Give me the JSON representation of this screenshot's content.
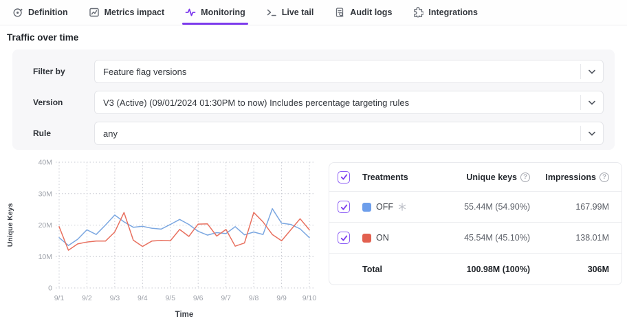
{
  "tabs": {
    "items": [
      {
        "label": "Definition",
        "icon": "flag-definition-icon",
        "active": false
      },
      {
        "label": "Metrics impact",
        "icon": "metrics-chart-icon",
        "active": false
      },
      {
        "label": "Monitoring",
        "icon": "pulse-icon",
        "active": true
      },
      {
        "label": "Live tail",
        "icon": "terminal-icon",
        "active": false
      },
      {
        "label": "Audit logs",
        "icon": "audit-document-icon",
        "active": false
      },
      {
        "label": "Integrations",
        "icon": "puzzle-icon",
        "active": false
      }
    ]
  },
  "page": {
    "title": "Traffic over time"
  },
  "filters": {
    "rows": [
      {
        "label": "Filter by",
        "value": "Feature flag versions"
      },
      {
        "label": "Version",
        "value": "V3 (Active) (09/01/2024 01:30PM to now) Includes percentage targeting rules"
      },
      {
        "label": "Rule",
        "value": "any"
      }
    ]
  },
  "treatments_table": {
    "header": {
      "treatments": "Treatments",
      "unique_keys": "Unique keys",
      "impressions": "Impressions"
    },
    "rows": [
      {
        "label": "OFF",
        "swatch_color": "#6d9eeb",
        "has_snowflake": true,
        "unique_keys": "55.44M (54.90%)",
        "impressions": "167.99M"
      },
      {
        "label": "ON",
        "swatch_color": "#e2604f",
        "has_snowflake": false,
        "unique_keys": "45.54M (45.10%)",
        "impressions": "138.01M"
      }
    ],
    "total": {
      "label": "Total",
      "unique_keys": "100.98M (100%)",
      "impressions": "306M"
    }
  },
  "colors": {
    "accent": "#7c3aed",
    "off_series": "#7ba7e1",
    "on_series": "#e8705f",
    "grid": "#c7c9d1"
  },
  "chart_data": {
    "type": "line",
    "xlabel": "Time",
    "ylabel": "Unique Keys",
    "categories": [
      "9/1",
      "9/2",
      "9/3",
      "9/4",
      "9/5",
      "9/6",
      "9/7",
      "9/8",
      "9/9",
      "9/10"
    ],
    "ylim": [
      0,
      40
    ],
    "yticks": [
      {
        "value": 0,
        "label": "0"
      },
      {
        "value": 10,
        "label": "10M"
      },
      {
        "value": 20,
        "label": "20M"
      },
      {
        "value": 30,
        "label": "30M"
      },
      {
        "value": 40,
        "label": "40M"
      }
    ],
    "unit": "M",
    "grid": true,
    "legend_position": "table-right",
    "series": [
      {
        "name": "OFF",
        "color": "#7ba7e1",
        "values": [
          16,
          13.5,
          15.5,
          18.5,
          17,
          20,
          23.2,
          21,
          19.3,
          19.6,
          19,
          18.7,
          20.2,
          21.8,
          20.2,
          18,
          16.8,
          17.6,
          17.3,
          19.5,
          16.9,
          17.8,
          17,
          25.2,
          20.6,
          20.2,
          18.8,
          16
        ]
      },
      {
        "name": "ON",
        "color": "#e8705f",
        "values": [
          19.5,
          12,
          14,
          14.6,
          14.9,
          14.9,
          17.8,
          24,
          15.2,
          13.2,
          14.9,
          15.1,
          15,
          18.6,
          16.4,
          20.3,
          20.4,
          16.5,
          18.6,
          13.3,
          14.3,
          24,
          21,
          17,
          15,
          18.5,
          22,
          18.5
        ]
      }
    ]
  }
}
